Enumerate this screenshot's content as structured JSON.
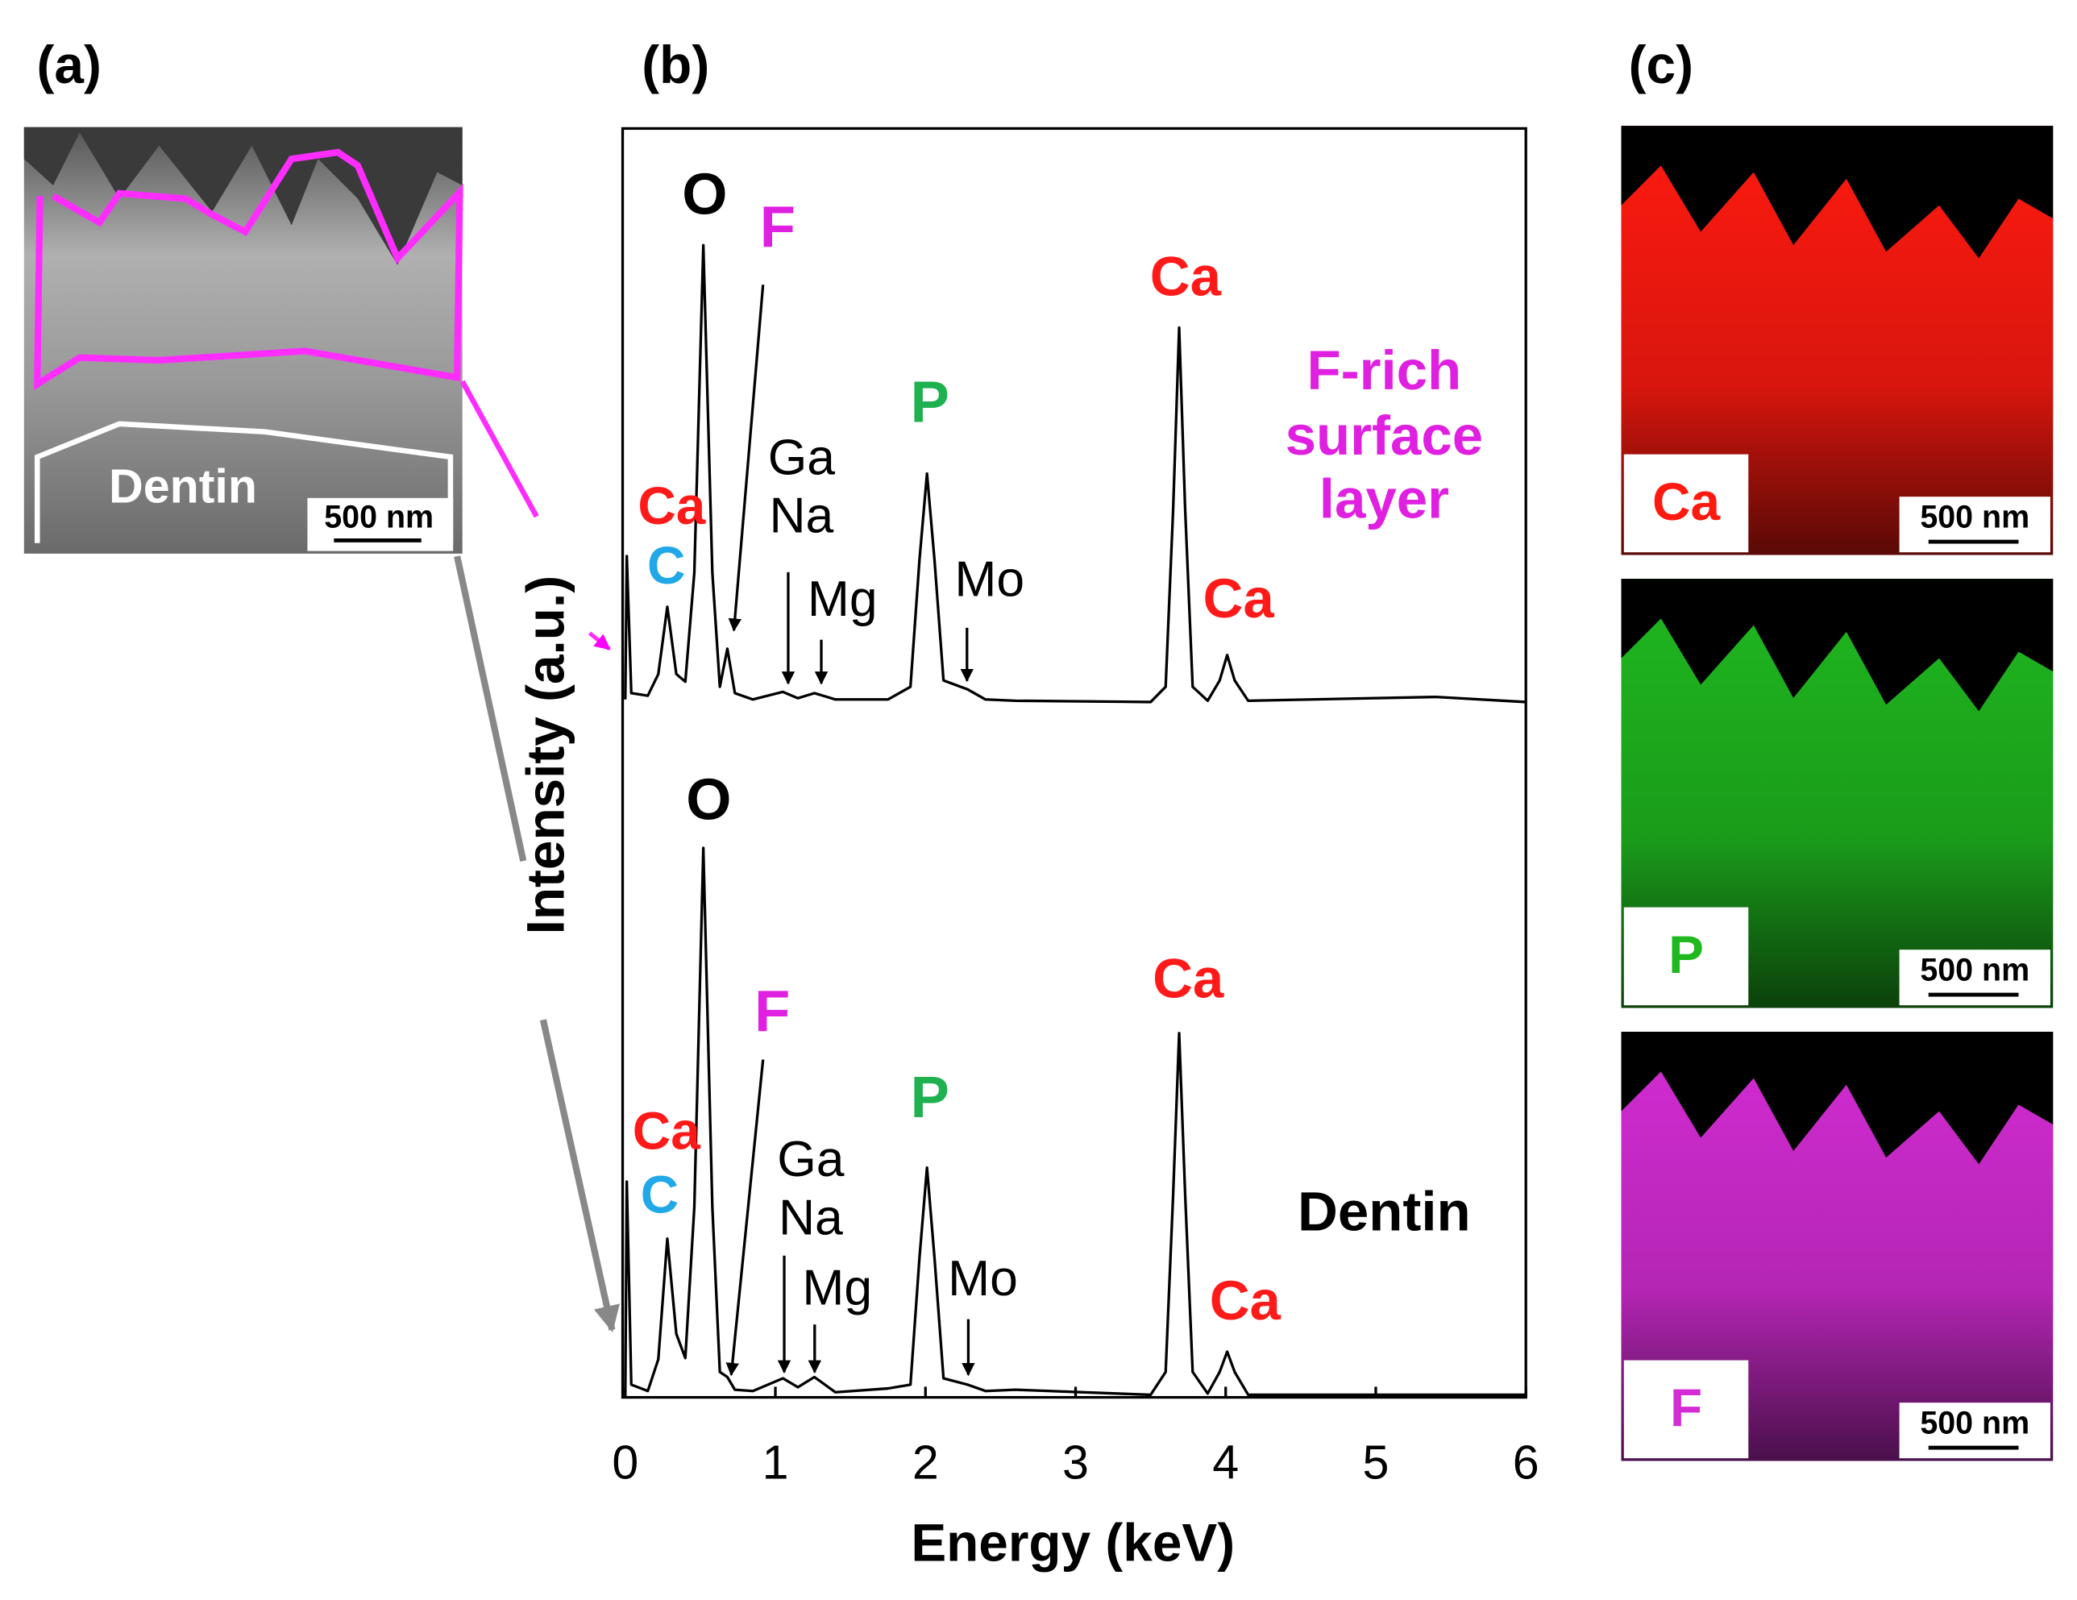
{
  "panel_a": {
    "label": "(a)",
    "region_label": "Dentin",
    "scale_bar": "500 nm"
  },
  "panel_c": {
    "label": "(c)",
    "maps": [
      {
        "element": "Ca",
        "scale_bar": "500 nm",
        "color": "#ff1a10"
      },
      {
        "element": "P",
        "scale_bar": "500 nm",
        "color": "#1fb81f"
      },
      {
        "element": "F",
        "scale_bar": "500 nm",
        "color": "#d42cd4"
      }
    ]
  },
  "chart_data": {
    "type": "line",
    "panel_label": "(b)",
    "x_label": "Energy (keV)",
    "y_label": "Intensity (a.u.)",
    "xlim": [
      0,
      6
    ],
    "xticks": [
      0,
      1,
      2,
      3,
      4,
      5,
      6
    ],
    "ylim": [
      0,
      100
    ],
    "x": [
      0,
      0.01,
      0.04,
      0.15,
      0.22,
      0.28,
      0.34,
      0.4,
      0.46,
      0.52,
      0.58,
      0.63,
      0.68,
      0.73,
      0.85,
      1.05,
      1.15,
      1.26,
      1.4,
      1.75,
      1.9,
      1.96,
      2.01,
      2.06,
      2.12,
      2.28,
      2.4,
      2.6,
      3.5,
      3.6,
      3.65,
      3.69,
      3.73,
      3.78,
      3.88,
      3.96,
      4.01,
      4.06,
      4.15,
      5.4,
      6
    ],
    "series": [
      {
        "color": "#000000",
        "values": [
          55,
          66.3,
          55.5,
          55.3,
          57,
          62.3,
          57,
          56.4,
          65,
          90.8,
          65,
          56,
          59,
          55.5,
          55,
          55.6,
          55.1,
          55.5,
          55,
          55,
          56,
          66,
          72.8,
          66,
          56.5,
          55.8,
          55,
          54.9,
          54.8,
          56,
          70,
          84.3,
          70,
          56,
          54.9,
          56.5,
          58.5,
          56.5,
          54.9,
          55.2,
          54.8
        ]
      },
      {
        "color": "#000000",
        "values": [
          0.3,
          17,
          1,
          0.5,
          3,
          12.5,
          5,
          3.1,
          15,
          43.3,
          15,
          2,
          1.6,
          0.6,
          0.5,
          1.5,
          0.8,
          1.6,
          0.4,
          0.7,
          1,
          11,
          18.1,
          11,
          1.5,
          1,
          0.5,
          0.6,
          0.2,
          2,
          16,
          28.7,
          16,
          2,
          0.3,
          2,
          3.6,
          2,
          0.2,
          0.2,
          0.2
        ]
      }
    ],
    "annotations": [
      {
        "text": "O",
        "color": "#000000"
      },
      {
        "text": "F",
        "color": "#e020e0"
      },
      {
        "text": "Ca",
        "color": "#ff1a1a"
      },
      {
        "text": "C",
        "color": "#20a8e8"
      },
      {
        "text": "Ga",
        "color": "#000000"
      },
      {
        "text": "Na",
        "color": "#000000"
      },
      {
        "text": "Mg",
        "color": "#000000"
      },
      {
        "text": "Mo",
        "color": "#000000"
      },
      {
        "text": "P",
        "color": "#1fb050"
      },
      {
        "text": "Ca",
        "color": "#ff1a1a"
      },
      {
        "text": "Ca",
        "color": "#ff1a1a"
      },
      {
        "text": "F-rich",
        "color": "#e020e0"
      },
      {
        "text": "surface",
        "color": "#e020e0"
      },
      {
        "text": "layer",
        "color": "#e020e0"
      },
      {
        "text": "O",
        "color": "#000000"
      },
      {
        "text": "F",
        "color": "#e020e0"
      },
      {
        "text": "Ca",
        "color": "#ff1a1a"
      },
      {
        "text": "C",
        "color": "#20a8e8"
      },
      {
        "text": "Ga",
        "color": "#000000"
      },
      {
        "text": "Na",
        "color": "#000000"
      },
      {
        "text": "Mg",
        "color": "#000000"
      },
      {
        "text": "Mo",
        "color": "#000000"
      },
      {
        "text": "P",
        "color": "#1fb050"
      },
      {
        "text": "Ca",
        "color": "#ff1a1a"
      },
      {
        "text": "Ca",
        "color": "#ff1a1a"
      },
      {
        "text": "Dentin",
        "color": "#000000"
      }
    ]
  }
}
